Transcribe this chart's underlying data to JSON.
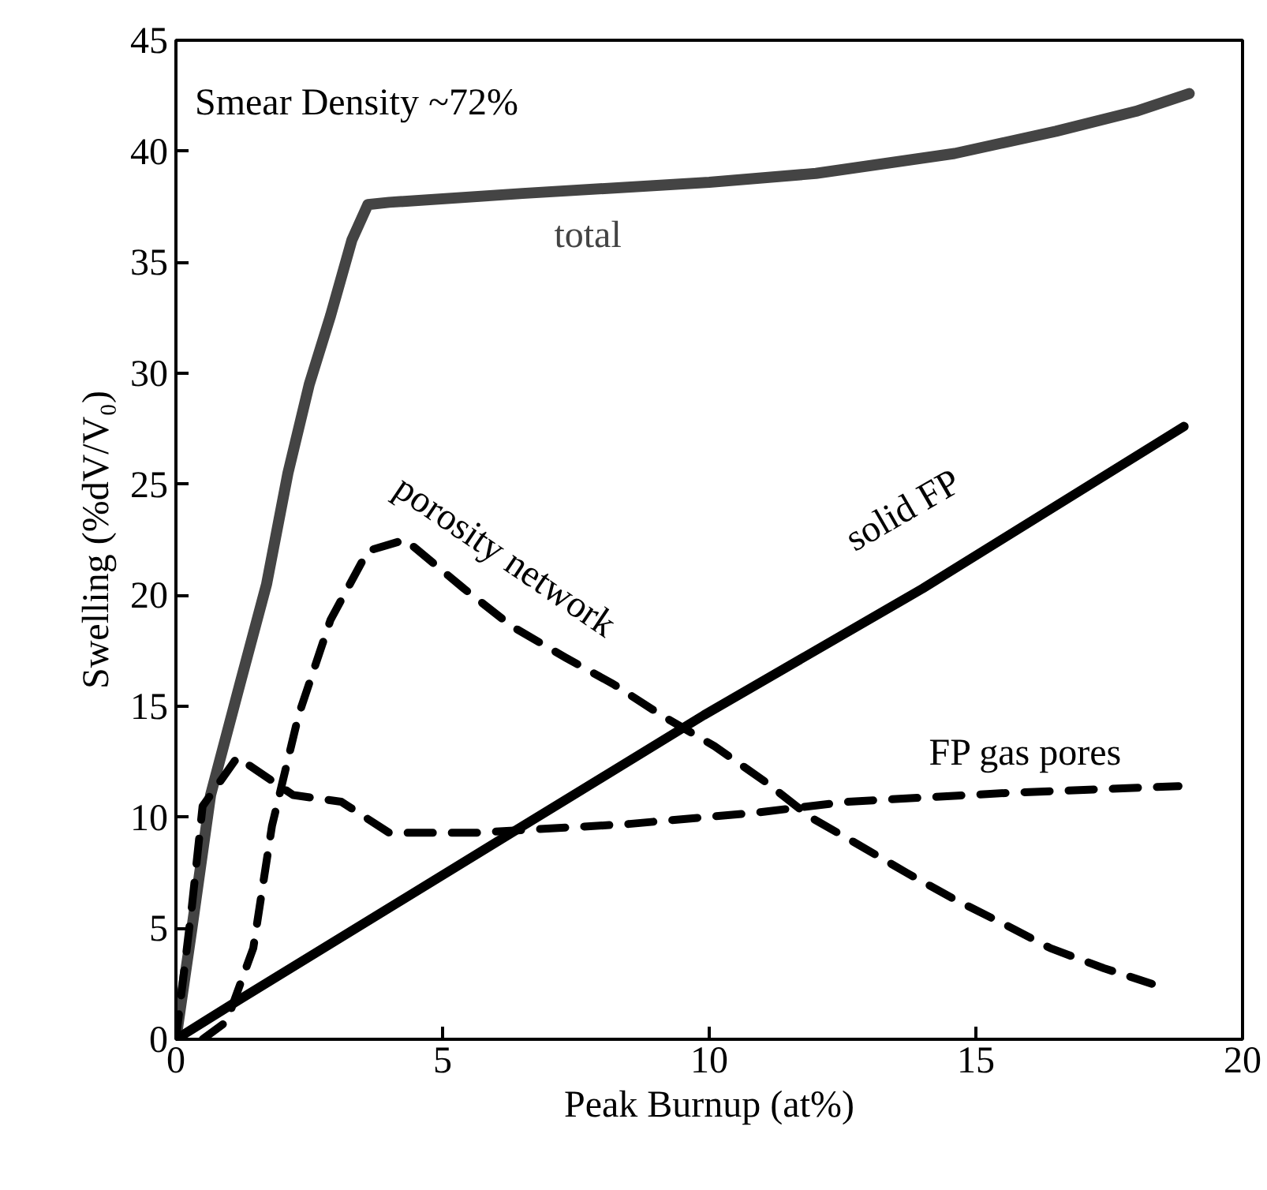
{
  "chart_data": {
    "type": "line",
    "xlabel": "Peak Burnup (at%)",
    "ylabel": "Swelling (%dV/V₀)",
    "xlim": [
      0,
      20
    ],
    "ylim": [
      0,
      45
    ],
    "xticks": [
      0,
      5,
      10,
      15,
      20
    ],
    "yticks": [
      0,
      5,
      10,
      15,
      20,
      25,
      30,
      35,
      40,
      45
    ],
    "grid": false,
    "marker": "none",
    "annotations": [
      "Smear Density ~72%"
    ],
    "series": [
      {
        "name": "total",
        "color": "#444444",
        "line_style": "solid",
        "x": [
          0,
          0.3,
          0.65,
          1.2,
          1.7,
          2.1,
          2.5,
          2.9,
          3.3,
          3.6,
          4,
          6.5,
          10,
          12,
          14.6,
          16.5,
          18,
          19
        ],
        "values": [
          0,
          5,
          11,
          16,
          20.5,
          25.5,
          29.5,
          32.6,
          36,
          37.6,
          37.7,
          38.1,
          38.6,
          39,
          39.9,
          40.9,
          41.8,
          42.6
        ]
      },
      {
        "name": "porosity network",
        "color": "#000000",
        "line_style": "dashed",
        "x": [
          0.5,
          0.95,
          1.45,
          1.8,
          2.3,
          2.9,
          3.6,
          4.3,
          5.4,
          6.3,
          7.3,
          8.2,
          9.1,
          10.1,
          11.05,
          11.9,
          12.7,
          13.7,
          14.6,
          15.6,
          16.4,
          17.4,
          18.3
        ],
        "values": [
          0,
          0.8,
          4.1,
          9.6,
          14.6,
          18.9,
          22,
          22.5,
          20.3,
          18.6,
          17.2,
          16,
          14.6,
          13.2,
          11.6,
          10,
          8.9,
          7.5,
          6.3,
          5.1,
          4.1,
          3.2,
          2.5
        ]
      },
      {
        "name": "solid FP",
        "color": "#000000",
        "line_style": "solid",
        "x": [
          0,
          1.2,
          6.5,
          9.9,
          14,
          18.9
        ],
        "values": [
          0,
          1.8,
          9.6,
          14.6,
          20.3,
          27.6
        ]
      },
      {
        "name": "FP gas pores",
        "color": "#000000",
        "line_style": "dashed",
        "x": [
          0,
          0.3,
          0.5,
          1.15,
          2.2,
          3.1,
          4,
          5.6,
          8.5,
          9.9,
          10.85,
          12.6,
          15.6,
          18.8
        ],
        "values": [
          0,
          6,
          10.5,
          12.7,
          11,
          10.7,
          9.3,
          9.3,
          9.7,
          10,
          10.2,
          10.7,
          11.1,
          11.4
        ]
      }
    ]
  }
}
